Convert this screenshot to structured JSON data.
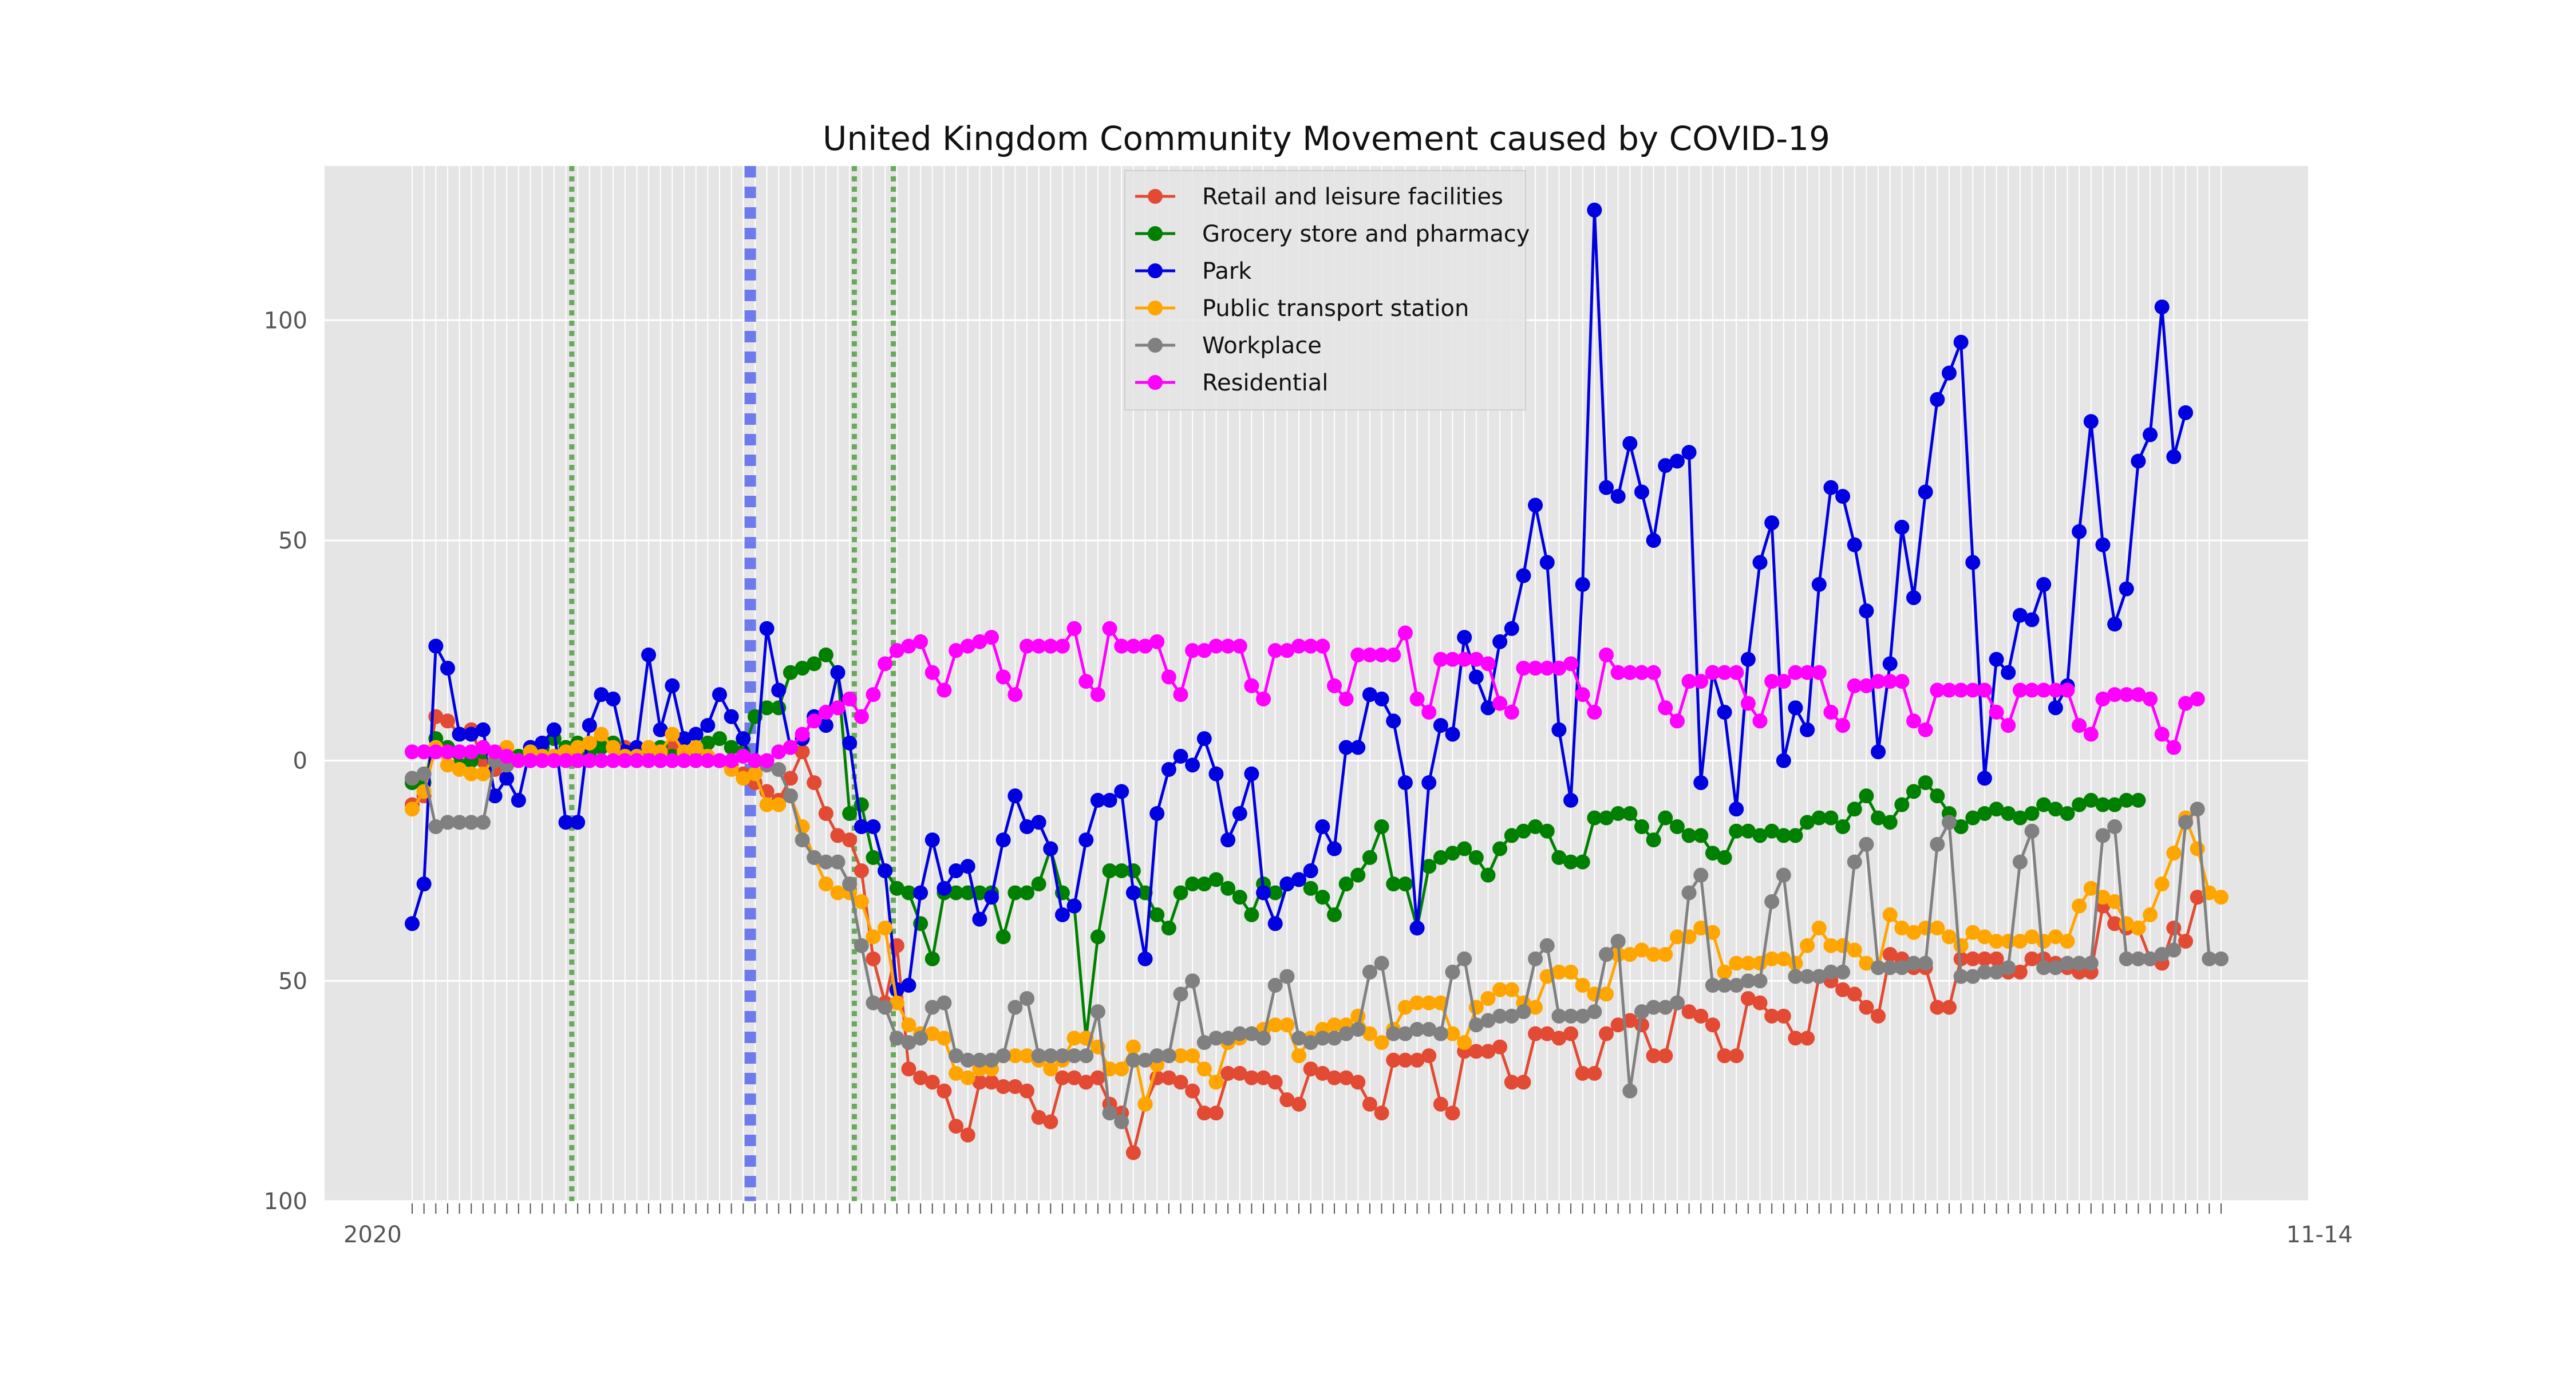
{
  "chart_data": {
    "type": "line",
    "title": "United Kingdom Community Movement caused by COVID-19",
    "xlabel": "",
    "ylabel": "",
    "ylim": [
      -100,
      135
    ],
    "y_ticks": [
      -100,
      -50,
      0,
      50,
      100
    ],
    "y_tick_labels": [
      "100",
      "50",
      "0",
      "50",
      "100"
    ],
    "x_tick_label_note": "x tick labels are dense overlapping date strings; first starts '2020', last ends '11-14'",
    "x_first_label": "2020",
    "x_last_label": "11-14",
    "grid": true,
    "legend_position": "top-center",
    "event_lines": [
      {
        "x": 13.5,
        "style": "dotted",
        "color": "#4a9a3a"
      },
      {
        "x": 28.6,
        "style": "dashed",
        "color": "#4455ee"
      },
      {
        "x": 37.4,
        "style": "dotted",
        "color": "#4a9a3a"
      },
      {
        "x": 40.7,
        "style": "dotted",
        "color": "#4a9a3a"
      }
    ],
    "series": [
      {
        "name": "Retail and leisure facilities",
        "color": "#e24a33",
        "values": [
          -10,
          -8,
          10,
          9,
          6,
          7,
          0,
          -2,
          -1,
          0,
          0,
          1,
          1,
          2,
          2,
          3,
          5,
          4,
          3,
          2,
          1,
          2,
          3,
          2,
          1,
          1,
          0,
          -1,
          -3,
          -5,
          -7,
          -9,
          -4,
          2,
          -5,
          -12,
          -17,
          -18,
          -25,
          -45,
          -55,
          -42,
          -70,
          -72,
          -73,
          -75,
          -83,
          -85,
          -73,
          -73,
          -74,
          -74,
          -75,
          -81,
          -82,
          -72,
          -72,
          -73,
          -72,
          -78,
          -80,
          -89,
          -78,
          -72,
          -72,
          -73,
          -75,
          -80,
          -80,
          -71,
          -71,
          -72,
          -72,
          -73,
          -77,
          -78,
          -70,
          -71,
          -72,
          -72,
          -73,
          -78,
          -80,
          -68,
          -68,
          -68,
          -67,
          -78,
          -80,
          -66,
          -66,
          -66,
          -65,
          -73,
          -73,
          -62,
          -62,
          -63,
          -62,
          -71,
          -71,
          -62,
          -60,
          -59,
          -60,
          -67,
          -67,
          -55,
          -57,
          -58,
          -60,
          -67,
          -67,
          -54,
          -55,
          -58,
          -58,
          -63,
          -63,
          -49,
          -50,
          -52,
          -53,
          -56,
          -58,
          -44,
          -45,
          -47,
          -47,
          -56,
          -56,
          -45,
          -45,
          -45,
          -45,
          -48,
          -48,
          -45,
          -45,
          -46,
          -47,
          -48,
          -48,
          -33,
          -37,
          -38,
          -38,
          -45,
          -46,
          -38,
          -41,
          -31
        ]
      },
      {
        "name": "Grocery store and pharmacy",
        "color": "#008000",
        "values": [
          -5,
          -5,
          5,
          3,
          -1,
          0,
          2,
          1,
          0,
          1,
          2,
          3,
          5,
          3,
          4,
          2,
          3,
          4,
          2,
          1,
          2,
          3,
          1,
          1,
          2,
          4,
          5,
          3,
          2,
          10,
          12,
          12,
          20,
          21,
          22,
          24,
          20,
          -12,
          -10,
          -22,
          -25,
          -29,
          -30,
          -37,
          -45,
          -30,
          -30,
          -30,
          -30,
          -30,
          -40,
          -30,
          -30,
          -28,
          -20,
          -30,
          -33,
          -63,
          -40,
          -25,
          -25,
          -25,
          -30,
          -35,
          -38,
          -30,
          -28,
          -28,
          -27,
          -29,
          -31,
          -35,
          -28,
          -30,
          -28,
          -27,
          -29,
          -31,
          -35,
          -28,
          -26,
          -22,
          -15,
          -28,
          -28,
          -38,
          -24,
          -22,
          -21,
          -20,
          -22,
          -26,
          -20,
          -17,
          -16,
          -15,
          -16,
          -22,
          -23,
          -23,
          -13,
          -13,
          -12,
          -12,
          -15,
          -18,
          -13,
          -15,
          -17,
          -17,
          -21,
          -22,
          -16,
          -16,
          -17,
          -16,
          -17,
          -17,
          -14,
          -13,
          -13,
          -15,
          -11,
          -8,
          -13,
          -14,
          -10,
          -7,
          -5,
          -8,
          -12,
          -15,
          -13,
          -12,
          -11,
          -12,
          -13,
          -12,
          -10,
          -11,
          -12,
          -10,
          -9,
          -10,
          -10,
          -9,
          -9
        ]
      },
      {
        "name": "Park",
        "color": "#0000e0",
        "values": [
          -37,
          -28,
          26,
          21,
          6,
          6,
          7,
          -8,
          -4,
          -9,
          3,
          4,
          7,
          -14,
          -14,
          8,
          15,
          14,
          2,
          3,
          24,
          7,
          17,
          5,
          6,
          8,
          15,
          10,
          5,
          -3,
          30,
          16,
          3,
          5,
          10,
          8,
          20,
          4,
          -15,
          -15,
          -25,
          -52,
          -51,
          -30,
          -18,
          -29,
          -25,
          -24,
          -36,
          -31,
          -18,
          -8,
          -15,
          -14,
          -20,
          -35,
          -33,
          -18,
          -9,
          -9,
          -7,
          -30,
          -45,
          -12,
          -2,
          1,
          -1,
          5,
          -3,
          -18,
          -12,
          -3,
          -30,
          -37,
          -28,
          -27,
          -25,
          -15,
          -20,
          3,
          3,
          15,
          14,
          9,
          -5,
          -38,
          -5,
          8,
          6,
          28,
          19,
          12,
          27,
          30,
          42,
          58,
          45,
          7,
          -9,
          40,
          125,
          62,
          60,
          72,
          61,
          50,
          67,
          68,
          70,
          -5,
          20,
          11,
          -11,
          23,
          45,
          54,
          0,
          12,
          7,
          40,
          62,
          60,
          49,
          34,
          2,
          22,
          53,
          37,
          61,
          82,
          88,
          95,
          45,
          -4,
          23,
          20,
          33,
          32,
          40,
          12,
          17,
          52,
          77,
          49,
          31,
          39,
          68,
          74,
          103,
          69,
          79
        ]
      },
      {
        "name": "Public transport station",
        "color": "#ffa500",
        "values": [
          -11,
          -7,
          3,
          -1,
          -2,
          -3,
          -3,
          1,
          3,
          0,
          2,
          1,
          1,
          2,
          3,
          4,
          6,
          3,
          1,
          1,
          3,
          2,
          6,
          2,
          3,
          1,
          0,
          -2,
          -4,
          -3,
          -10,
          -10,
          -8,
          -15,
          -22,
          -28,
          -30,
          -30,
          -32,
          -40,
          -38,
          -55,
          -60,
          -62,
          -62,
          -63,
          -71,
          -72,
          -70,
          -70,
          -67,
          -67,
          -67,
          -68,
          -70,
          -68,
          -63,
          -63,
          -65,
          -70,
          -70,
          -65,
          -78,
          -69,
          -67,
          -67,
          -67,
          -70,
          -73,
          -64,
          -63,
          -62,
          -61,
          -60,
          -60,
          -67,
          -63,
          -61,
          -60,
          -60,
          -58,
          -62,
          -64,
          -61,
          -56,
          -55,
          -55,
          -55,
          -62,
          -64,
          -56,
          -54,
          -52,
          -52,
          -55,
          -56,
          -49,
          -48,
          -48,
          -51,
          -53,
          -53,
          -44,
          -44,
          -43,
          -44,
          -44,
          -40,
          -40,
          -38,
          -39,
          -48,
          -46,
          -46,
          -46,
          -45,
          -45,
          -46,
          -42,
          -38,
          -42,
          -42,
          -43,
          -46,
          -47,
          -35,
          -38,
          -39,
          -38,
          -38,
          -40,
          -42,
          -39,
          -40,
          -41,
          -41,
          -41,
          -40,
          -41,
          -40,
          -41,
          -33,
          -29,
          -31,
          -32,
          -37,
          -38,
          -35,
          -28,
          -21,
          -13,
          -20,
          -30,
          -31
        ]
      },
      {
        "name": "Workplace",
        "color": "#808080",
        "values": [
          -4,
          -3,
          -15,
          -14,
          -14,
          -14,
          -14,
          0,
          -1,
          0,
          0,
          0,
          0,
          0,
          0,
          0,
          0,
          0,
          0,
          0,
          0,
          0,
          0,
          0,
          0,
          0,
          0,
          0,
          1,
          0,
          -1,
          -2,
          -8,
          -18,
          -22,
          -23,
          -23,
          -28,
          -42,
          -55,
          -56,
          -63,
          -64,
          -63,
          -56,
          -55,
          -67,
          -68,
          -68,
          -68,
          -67,
          -56,
          -54,
          -67,
          -67,
          -67,
          -67,
          -67,
          -57,
          -80,
          -82,
          -68,
          -68,
          -67,
          -67,
          -53,
          -50,
          -64,
          -63,
          -63,
          -62,
          -62,
          -63,
          -51,
          -49,
          -63,
          -64,
          -63,
          -63,
          -62,
          -61,
          -48,
          -46,
          -62,
          -62,
          -61,
          -61,
          -62,
          -48,
          -45,
          -60,
          -59,
          -58,
          -58,
          -57,
          -45,
          -42,
          -58,
          -58,
          -58,
          -57,
          -44,
          -41,
          -75,
          -57,
          -56,
          -56,
          -55,
          -30,
          -26,
          -51,
          -51,
          -51,
          -50,
          -50,
          -32,
          -26,
          -49,
          -49,
          -49,
          -48,
          -48,
          -23,
          -19,
          -47,
          -47,
          -47,
          -46,
          -46,
          -19,
          -14,
          -49,
          -49,
          -48,
          -48,
          -47,
          -23,
          -16,
          -47,
          -47,
          -46,
          -46,
          -46,
          -17,
          -15,
          -45,
          -45,
          -45,
          -44,
          -43,
          -14,
          -11,
          -45,
          -45
        ]
      },
      {
        "name": "Residential",
        "color": "#ff00ff",
        "values": [
          2,
          2,
          2,
          2,
          2,
          2,
          3,
          2,
          1,
          0,
          0,
          0,
          0,
          0,
          0,
          0,
          0,
          0,
          0,
          0,
          0,
          0,
          0,
          0,
          0,
          0,
          0,
          0,
          1,
          0,
          0,
          2,
          3,
          6,
          9,
          11,
          12,
          14,
          10,
          15,
          22,
          25,
          26,
          27,
          20,
          16,
          25,
          26,
          27,
          28,
          19,
          15,
          26,
          26,
          26,
          26,
          30,
          18,
          15,
          30,
          26,
          26,
          26,
          27,
          19,
          15,
          25,
          25,
          26,
          26,
          26,
          17,
          14,
          25,
          25,
          26,
          26,
          26,
          17,
          14,
          24,
          24,
          24,
          24,
          29,
          14,
          11,
          23,
          23,
          23,
          23,
          22,
          13,
          11,
          21,
          21,
          21,
          21,
          22,
          15,
          11,
          24,
          20,
          20,
          20,
          20,
          12,
          9,
          18,
          18,
          20,
          20,
          20,
          13,
          9,
          18,
          18,
          20,
          20,
          20,
          11,
          8,
          17,
          17,
          18,
          18,
          18,
          9,
          7,
          16,
          16,
          16,
          16,
          16,
          11,
          8,
          16,
          16,
          16,
          16,
          16,
          8,
          6,
          14,
          15,
          15,
          15,
          14,
          6,
          3,
          13,
          14
        ]
      }
    ]
  }
}
